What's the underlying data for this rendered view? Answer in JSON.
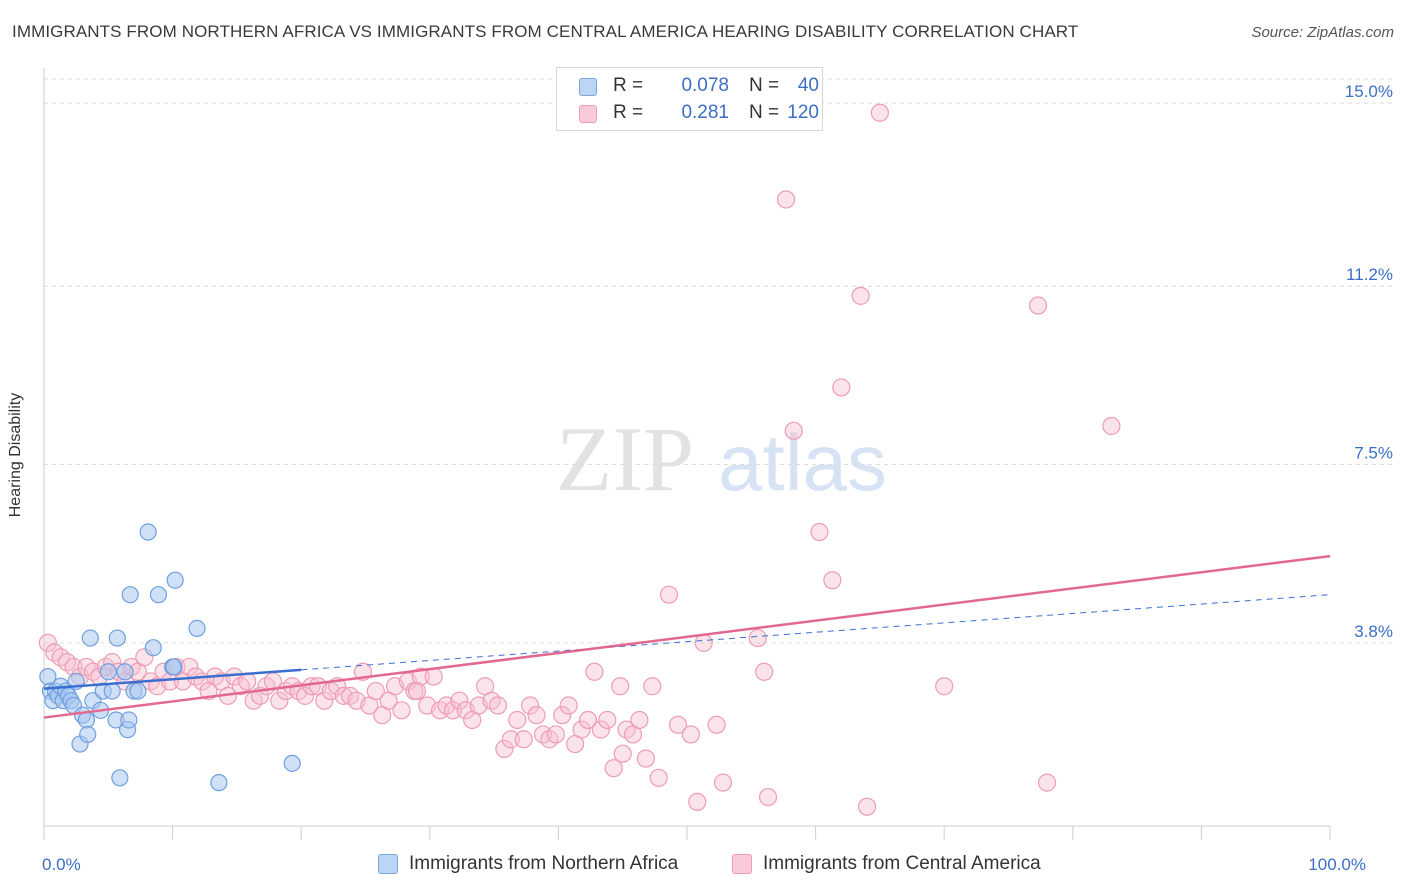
{
  "header": {
    "title": "IMMIGRANTS FROM NORTHERN AFRICA VS IMMIGRANTS FROM CENTRAL AMERICA HEARING DISABILITY CORRELATION CHART",
    "source": "Source: ZipAtlas.com"
  },
  "watermark": {
    "zip": "ZIP",
    "atlas": "atlas"
  },
  "legend_top": {
    "rows": [
      {
        "r_label": "R =",
        "r_value": "0.078",
        "n_label": "N =",
        "n_value": "40"
      },
      {
        "r_label": "R =",
        "r_value": "0.281",
        "n_label": "N =",
        "n_value": "120"
      }
    ]
  },
  "legend_bottom": {
    "items": [
      "Immigrants from Northern Africa",
      "Immigrants from Central America"
    ]
  },
  "colors": {
    "blue_fill": "#a9c8f0",
    "blue_stroke": "#6f9fe0",
    "blue_line": "#3a6fd0",
    "pink_fill": "#f7c0d0",
    "pink_stroke": "#ee9cb6",
    "pink_line": "#e2688f",
    "tick_label": "#3b6fc4",
    "grid": "#dcdcdc"
  },
  "chart_data": {
    "type": "scatter",
    "title": "IMMIGRANTS FROM NORTHERN AFRICA VS IMMIGRANTS FROM CENTRAL AMERICA HEARING DISABILITY CORRELATION CHART",
    "xlabel": "",
    "ylabel": "Hearing Disability",
    "xlim": [
      0,
      100
    ],
    "ylim": [
      0,
      15.5
    ],
    "x_ticks": [
      0,
      10,
      20,
      30,
      40,
      50,
      60,
      70,
      80,
      90,
      100
    ],
    "x_tick_labels": [
      {
        "value": 0,
        "label": "0.0%"
      },
      {
        "value": 100,
        "label": "100.0%"
      }
    ],
    "y_ticks": [
      {
        "value": 3.8,
        "label": "3.8%"
      },
      {
        "value": 7.5,
        "label": "7.5%"
      },
      {
        "value": 11.2,
        "label": "11.2%"
      },
      {
        "value": 15.0,
        "label": "15.0%"
      }
    ],
    "grid": "horizontal dashed",
    "legend_placement": "top-center",
    "series": [
      {
        "name": "Immigrants from Northern Africa",
        "color": "#a9c8f0",
        "points": [
          [
            0.3,
            3.1
          ],
          [
            0.5,
            2.8
          ],
          [
            0.7,
            2.6
          ],
          [
            0.9,
            2.8
          ],
          [
            1.1,
            2.7
          ],
          [
            1.3,
            2.9
          ],
          [
            1.5,
            2.6
          ],
          [
            1.7,
            2.8
          ],
          [
            1.9,
            2.7
          ],
          [
            2.1,
            2.6
          ],
          [
            2.3,
            2.5
          ],
          [
            2.5,
            3.0
          ],
          [
            2.8,
            1.7
          ],
          [
            3.0,
            2.3
          ],
          [
            3.3,
            2.2
          ],
          [
            3.4,
            1.9
          ],
          [
            3.6,
            3.9
          ],
          [
            3.8,
            2.6
          ],
          [
            4.4,
            2.4
          ],
          [
            4.6,
            2.8
          ],
          [
            5.0,
            3.2
          ],
          [
            5.3,
            2.8
          ],
          [
            5.6,
            2.2
          ],
          [
            5.7,
            3.9
          ],
          [
            5.9,
            1.0
          ],
          [
            6.3,
            3.2
          ],
          [
            6.5,
            2.0
          ],
          [
            6.6,
            2.2
          ],
          [
            6.7,
            4.8
          ],
          [
            7.0,
            2.8
          ],
          [
            7.3,
            2.8
          ],
          [
            8.1,
            6.1
          ],
          [
            8.5,
            3.7
          ],
          [
            8.9,
            4.8
          ],
          [
            10.0,
            3.3
          ],
          [
            10.1,
            3.3
          ],
          [
            10.2,
            5.1
          ],
          [
            11.9,
            4.1
          ],
          [
            13.6,
            0.9
          ],
          [
            19.3,
            1.3
          ]
        ],
        "trend": {
          "x0": 0,
          "y0": 2.85,
          "x1": 100,
          "y1": 4.8,
          "solid_until_x": 20
        }
      },
      {
        "name": "Immigrants from Central America",
        "color": "#f7c0d0",
        "points": [
          [
            0.3,
            3.8
          ],
          [
            0.8,
            3.6
          ],
          [
            1.3,
            3.5
          ],
          [
            1.8,
            3.4
          ],
          [
            2.3,
            3.3
          ],
          [
            2.8,
            3.1
          ],
          [
            3.3,
            3.3
          ],
          [
            3.8,
            3.2
          ],
          [
            4.3,
            3.1
          ],
          [
            4.8,
            3.3
          ],
          [
            5.3,
            3.4
          ],
          [
            5.8,
            3.2
          ],
          [
            6.3,
            3.0
          ],
          [
            6.8,
            3.3
          ],
          [
            7.3,
            3.2
          ],
          [
            7.8,
            3.5
          ],
          [
            8.3,
            3.0
          ],
          [
            8.8,
            2.9
          ],
          [
            9.3,
            3.2
          ],
          [
            9.8,
            3.0
          ],
          [
            10.3,
            3.3
          ],
          [
            10.8,
            3.0
          ],
          [
            11.3,
            3.3
          ],
          [
            11.8,
            3.1
          ],
          [
            12.3,
            3.0
          ],
          [
            12.8,
            2.8
          ],
          [
            13.3,
            3.1
          ],
          [
            13.8,
            3.0
          ],
          [
            14.3,
            2.7
          ],
          [
            14.8,
            3.1
          ],
          [
            15.3,
            2.9
          ],
          [
            15.8,
            3.0
          ],
          [
            16.3,
            2.6
          ],
          [
            16.8,
            2.7
          ],
          [
            17.3,
            2.9
          ],
          [
            17.8,
            3.0
          ],
          [
            18.3,
            2.6
          ],
          [
            18.8,
            2.8
          ],
          [
            19.3,
            2.9
          ],
          [
            19.8,
            2.8
          ],
          [
            20.3,
            2.7
          ],
          [
            20.8,
            2.9
          ],
          [
            21.3,
            2.9
          ],
          [
            21.8,
            2.6
          ],
          [
            22.3,
            2.8
          ],
          [
            22.8,
            2.9
          ],
          [
            23.3,
            2.7
          ],
          [
            23.8,
            2.7
          ],
          [
            24.3,
            2.6
          ],
          [
            24.8,
            3.2
          ],
          [
            25.3,
            2.5
          ],
          [
            25.8,
            2.8
          ],
          [
            26.3,
            2.3
          ],
          [
            26.8,
            2.6
          ],
          [
            27.3,
            2.9
          ],
          [
            27.8,
            2.4
          ],
          [
            28.3,
            3.0
          ],
          [
            28.8,
            2.8
          ],
          [
            29.3,
            3.1
          ],
          [
            29.8,
            2.5
          ],
          [
            30.3,
            3.1
          ],
          [
            30.8,
            2.4
          ],
          [
            31.3,
            2.5
          ],
          [
            31.8,
            2.4
          ],
          [
            32.3,
            2.6
          ],
          [
            32.8,
            2.4
          ],
          [
            33.3,
            2.2
          ],
          [
            33.8,
            2.5
          ],
          [
            34.3,
            2.9
          ],
          [
            34.8,
            2.6
          ],
          [
            35.3,
            2.5
          ],
          [
            35.8,
            1.6
          ],
          [
            36.3,
            1.8
          ],
          [
            36.8,
            2.2
          ],
          [
            37.3,
            1.8
          ],
          [
            37.8,
            2.5
          ],
          [
            38.3,
            2.3
          ],
          [
            38.8,
            1.9
          ],
          [
            39.3,
            1.8
          ],
          [
            39.8,
            1.9
          ],
          [
            40.3,
            2.3
          ],
          [
            40.8,
            2.5
          ],
          [
            41.3,
            1.7
          ],
          [
            41.8,
            2.0
          ],
          [
            42.3,
            2.2
          ],
          [
            42.8,
            3.2
          ],
          [
            43.3,
            2.0
          ],
          [
            43.8,
            2.2
          ],
          [
            44.3,
            1.2
          ],
          [
            44.8,
            2.9
          ],
          [
            45.3,
            2.0
          ],
          [
            45.8,
            1.9
          ],
          [
            46.3,
            2.2
          ],
          [
            46.8,
            1.4
          ],
          [
            47.3,
            2.9
          ],
          [
            47.8,
            1.0
          ],
          [
            48.6,
            4.8
          ],
          [
            49.3,
            2.1
          ],
          [
            50.3,
            1.9
          ],
          [
            50.8,
            0.5
          ],
          [
            51.3,
            3.8
          ],
          [
            52.3,
            2.1
          ],
          [
            52.8,
            0.9
          ],
          [
            55.5,
            3.9
          ],
          [
            56.3,
            0.6
          ],
          [
            57.7,
            13.0
          ],
          [
            58.3,
            8.2
          ],
          [
            60.3,
            6.1
          ],
          [
            61.3,
            5.1
          ],
          [
            62.0,
            9.1
          ],
          [
            63.5,
            11.0
          ],
          [
            64.0,
            0.4
          ],
          [
            65.0,
            14.8
          ],
          [
            70.0,
            2.9
          ],
          [
            77.3,
            10.8
          ],
          [
            78.0,
            0.9
          ],
          [
            83.0,
            8.3
          ],
          [
            56.0,
            3.2
          ],
          [
            45.0,
            1.5
          ],
          [
            29.0,
            2.8
          ]
        ],
        "trend": {
          "x0": 0,
          "y0": 2.25,
          "x1": 100,
          "y1": 5.6
        }
      }
    ]
  }
}
